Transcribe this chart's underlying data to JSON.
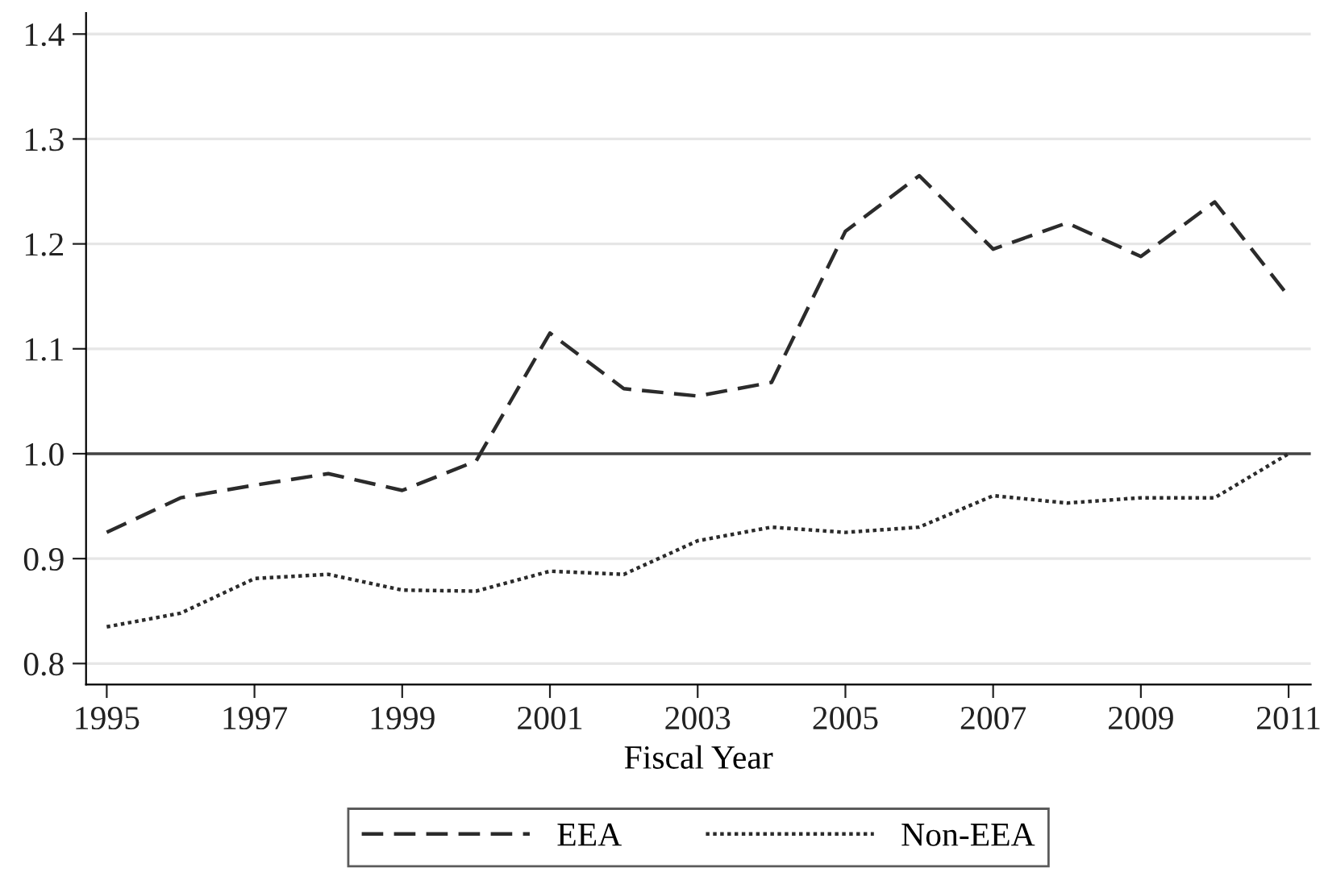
{
  "chart_data": {
    "type": "line",
    "xlabel": "Fiscal Year",
    "x": [
      1995,
      1996,
      1997,
      1998,
      1999,
      2000,
      2001,
      2002,
      2003,
      2004,
      2005,
      2006,
      2007,
      2008,
      2009,
      2010,
      2011
    ],
    "series": [
      {
        "name": "EEA",
        "color": "#2b2b2b",
        "line_style": "dashed",
        "values": [
          0.925,
          0.958,
          0.97,
          0.981,
          0.965,
          0.993,
          1.115,
          1.062,
          1.055,
          1.068,
          1.212,
          1.265,
          1.195,
          1.22,
          1.188,
          1.24,
          1.15
        ]
      },
      {
        "name": "Non-EEA",
        "color": "#2b2b2b",
        "line_style": "dotted",
        "values": [
          0.835,
          0.848,
          0.881,
          0.885,
          0.87,
          0.869,
          0.888,
          0.885,
          0.917,
          0.93,
          0.925,
          0.93,
          0.96,
          0.953,
          0.958,
          0.958,
          1.0
        ]
      }
    ],
    "xlim": [
      1994.72,
      2011.3
    ],
    "xticks": [
      1995,
      1997,
      1999,
      2001,
      2003,
      2005,
      2007,
      2009,
      2011
    ],
    "ylim": [
      0.78,
      1.42
    ],
    "yticks": [
      {
        "value": 0.8,
        "label": "0.8"
      },
      {
        "value": 0.9,
        "label": "0.9"
      },
      {
        "value": 1.0,
        "label": "1.0"
      },
      {
        "value": 1.1,
        "label": "1.1"
      },
      {
        "value": 1.2,
        "label": "1.2"
      },
      {
        "value": 1.3,
        "label": "1.3"
      },
      {
        "value": 1.4,
        "label": "1.4"
      }
    ],
    "ref_lines": [
      {
        "axis": "y",
        "value": 1.0,
        "color": "#444444",
        "line_style": "solid"
      }
    ],
    "grid": "y",
    "legend": "bottom",
    "marker": "none"
  }
}
